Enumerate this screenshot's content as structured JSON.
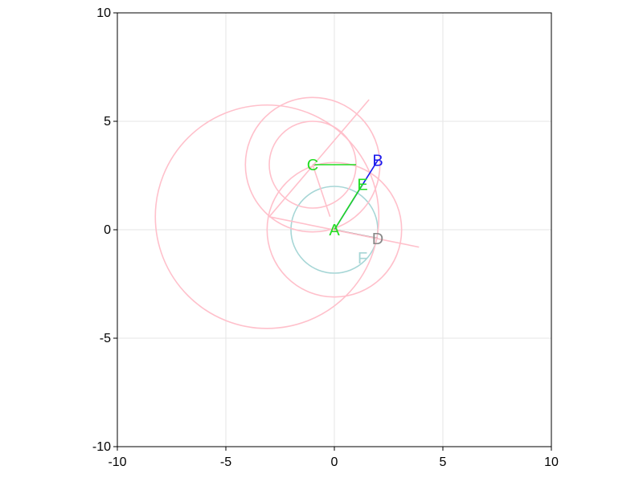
{
  "chart_data": {
    "type": "scatter",
    "title": "",
    "xlabel": "",
    "ylabel": "",
    "xlim": [
      -10,
      10
    ],
    "ylim": [
      -10,
      10
    ],
    "grid": true,
    "x_ticks": [
      -10,
      -5,
      0,
      5,
      10
    ],
    "y_ticks": [
      -10,
      -5,
      0,
      5,
      10
    ],
    "x_tick_labels": [
      "-10",
      "-5",
      "0",
      "5",
      "10"
    ],
    "y_tick_labels": [
      "-10",
      "-5",
      "0",
      "5",
      "10"
    ],
    "points": [
      {
        "label": "A",
        "x": 0,
        "y": 0,
        "color": "#22dd22"
      },
      {
        "label": "B",
        "x": 2,
        "y": 3.2,
        "color": "#1a1aee"
      },
      {
        "label": "C",
        "x": -1,
        "y": 3,
        "color": "#22dd22"
      },
      {
        "label": "D",
        "x": 2,
        "y": -0.4,
        "color": "#888888"
      },
      {
        "label": "E",
        "x": 1.3,
        "y": 2.1,
        "color": "#22dd22"
      },
      {
        "label": "F",
        "x": 1.3,
        "y": -1.3,
        "color": "#a6d6d6"
      }
    ],
    "segments": [
      {
        "x1": 0,
        "y1": 0,
        "x2": 2,
        "y2": 3.2,
        "color": "#1a1aee"
      },
      {
        "x1": 0,
        "y1": 0,
        "x2": 1.3,
        "y2": 2.1,
        "color": "#22dd22"
      },
      {
        "x1": -1,
        "y1": 3,
        "x2": 1,
        "y2": 3,
        "color": "#22dd22"
      },
      {
        "x1": 0,
        "y1": 0,
        "x2": 2,
        "y2": -0.4,
        "color": "#888888"
      },
      {
        "x1": -3,
        "y1": 0.6,
        "x2": 1.6,
        "y2": 6,
        "color": "#ffc0cb"
      },
      {
        "x1": -3,
        "y1": 0.6,
        "x2": 3.9,
        "y2": -0.8,
        "color": "#ffc0cb"
      },
      {
        "x1": -1,
        "y1": 3,
        "x2": -0.2,
        "y2": 0.6,
        "color": "#ffc0cb"
      }
    ],
    "circles": [
      {
        "cx": 0,
        "cy": 0,
        "r": 2,
        "color": "#a6d6d6"
      },
      {
        "cx": 0,
        "cy": 0,
        "r": 3.1,
        "color": "#ffc0cb"
      },
      {
        "cx": -1,
        "cy": 3,
        "r": 2,
        "color": "#ffc0cb"
      },
      {
        "cx": -1,
        "cy": 3,
        "r": 3.1,
        "color": "#ffc0cb"
      },
      {
        "cx": -3.1,
        "cy": 0.6,
        "r": 5.15,
        "color": "#ffc0cb"
      }
    ]
  }
}
